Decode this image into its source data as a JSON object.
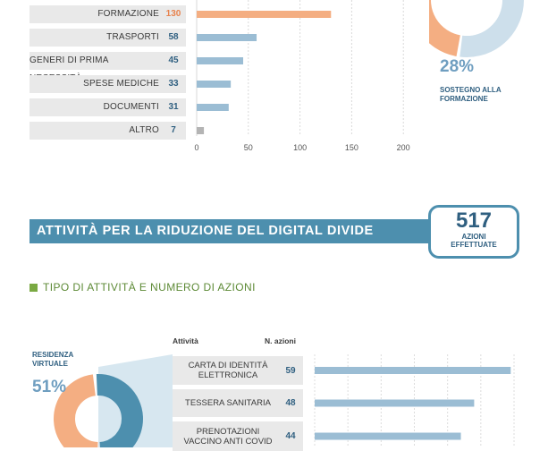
{
  "top_chart": {
    "chart_data": {
      "type": "bar",
      "orientation": "horizontal",
      "categories": [
        "FORMAZIONE",
        "TRASPORTI",
        "GENERI DI PRIMA NECESSITÀ",
        "SPESE MEDICHE",
        "DOCUMENTI",
        "ALTRO"
      ],
      "values": [
        130,
        58,
        45,
        33,
        31,
        7
      ],
      "value_labels": [
        "130",
        "58",
        "45",
        "33",
        "31",
        "7"
      ],
      "xlim": [
        0,
        200
      ],
      "x_ticks": [
        "0",
        "50",
        "100",
        "150",
        "200"
      ],
      "grid": true,
      "colors": [
        "#f4ae82",
        "#9bbdd4",
        "#9bbdd4",
        "#9bbdd4",
        "#9bbdd4",
        "#b4b4b4"
      ],
      "value_colors": [
        "#e8834e",
        "#2f5f80",
        "#2f5f80",
        "#2f5f80",
        "#2f5f80",
        "#2f5f80"
      ]
    }
  },
  "top_donut": {
    "chart_data": {
      "type": "pie",
      "style": "donut",
      "values": [
        28,
        72
      ],
      "colors": [
        "#f4ae82",
        "#cddfeb"
      ],
      "highlight_label": "28%",
      "caption": "SOSTEGNO ALLA FORMAZIONE"
    }
  },
  "banner": {
    "title": "ATTIVITÀ PER LA RIDUZIONE DEL DIGITAL DIVIDE",
    "badge_number": "517",
    "badge_label_1": "AZIONI",
    "badge_label_2": "EFFETTUATE"
  },
  "subtitle": "TIPO DI ATTIVITÀ E NUMERO DI AZIONI",
  "bottom_donut": {
    "chart_data": {
      "type": "pie",
      "style": "donut",
      "values": [
        51,
        49
      ],
      "colors": [
        "#4d8fae",
        "#f4ae82"
      ],
      "label": "RESIDENZA VIRTUALE",
      "label_lines": [
        "RESIDENZA",
        "VIRTUALE"
      ],
      "percent": "51%"
    }
  },
  "bottom_chart": {
    "header_activity": "Attività",
    "header_actions": "N. azioni",
    "chart_data": {
      "type": "bar",
      "orientation": "horizontal",
      "categories": [
        "CARTA DI IDENTITÀ ELETTRONICA",
        "TESSERA SANITARIA",
        "PRENOTAZIONI VACCINO ANTI COVID"
      ],
      "category_lines": [
        [
          "CARTA DI IDENTITÀ",
          "ELETTRONICA"
        ],
        [
          "TESSERA SANITARIA"
        ],
        [
          "PRENOTAZIONI",
          "VACCINO ANTI COVID"
        ]
      ],
      "values": [
        59,
        48,
        44
      ],
      "value_labels": [
        "59",
        "48",
        "44"
      ],
      "xlim": [
        0,
        60
      ],
      "grid": true,
      "colors": [
        "#9bbdd4",
        "#9bbdd4",
        "#9bbdd4"
      ]
    }
  }
}
